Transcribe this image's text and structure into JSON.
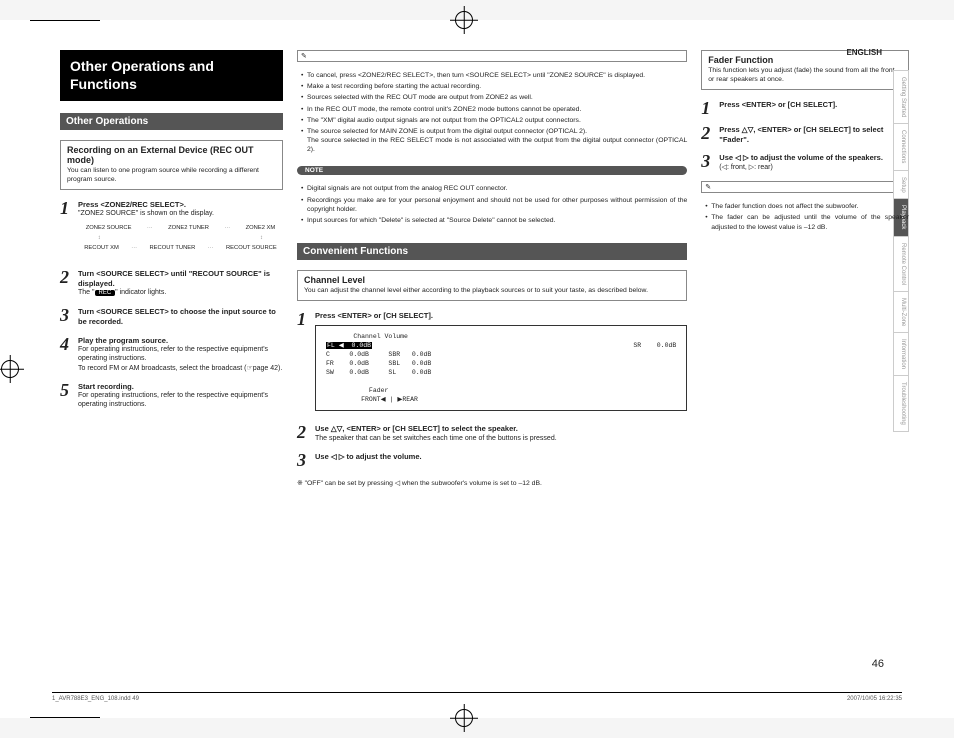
{
  "lang": "ENGLISH",
  "sideTabs": [
    "Getting Started",
    "Connections",
    "Setup",
    "Playback",
    "Remote Control",
    "Multi-Zone",
    "Information",
    "Troubleshooting"
  ],
  "sideTabActiveIndex": 3,
  "titleBlock": "Other Operations and Functions",
  "col1": {
    "sectionHeader": "Other Operations",
    "box": {
      "title": "Recording on an External Device (REC OUT mode)",
      "desc": "You can listen to one program source while recording a different program source."
    },
    "steps": [
      {
        "n": "1",
        "head": "Press <ZONE2/REC SELECT>.",
        "body": "\"ZONE2 SOURCE\" is shown on the display."
      },
      {
        "n": "2",
        "head": "Turn <SOURCE SELECT> until \"RECOUT SOURCE\" is displayed.",
        "body": "The \" REC \" indicator lights."
      },
      {
        "n": "3",
        "head": "Turn <SOURCE SELECT> to choose the input source to be recorded.",
        "body": ""
      },
      {
        "n": "4",
        "head": "Play the program source.",
        "body": "For operating instructions, refer to the respective equipment's operating instructions.\nTo record FM or AM broadcasts, select the broadcast (☞page 42)."
      },
      {
        "n": "5",
        "head": "Start recording.",
        "body": "For operating instructions, refer to the respective equipment's operating instructions."
      }
    ],
    "flow": {
      "row1": [
        "ZONE2 SOURCE",
        "···",
        "ZONE2 TUNER",
        "···",
        "ZONE2 XM"
      ],
      "row2": [
        "RECOUT XM",
        "···",
        "RECOUT TUNER",
        "···",
        "RECOUT SOURCE"
      ]
    }
  },
  "col2": {
    "topBullets": [
      "To cancel, press <ZONE2/REC SELECT>, then turn <SOURCE SELECT> until \"ZONE2 SOURCE\" is displayed.",
      "Make a test recording before starting the actual recording.",
      "Sources selected with the REC OUT mode are output from ZONE2 as well.",
      "In the REC OUT mode, the remote control unit's ZONE2 mode buttons cannot be operated.",
      "The \"XM\" digital audio output signals are not output from the OPTICAL2 output connectors.",
      "The source selected for MAIN ZONE is output from the digital output connector (OPTICAL 2).\nThe source selected in the REC SELECT mode is not associated with the output from the digital output connector (OPTICAL 2)."
    ],
    "noteLabel": "NOTE",
    "noteBullets": [
      "Digital signals are not output from the analog REC OUT connector.",
      "Recordings you make are for your personal enjoyment and should not be used for other purposes without permission of the copyright holder.",
      "Input sources for which \"Delete\" is selected at \"Source Delete\" cannot be selected."
    ],
    "sectionHeader": "Convenient Functions",
    "box": {
      "title": "Channel Level",
      "desc": "You can adjust the channel level either according to the playback sources or to suit your taste, as described below."
    },
    "steps": [
      {
        "n": "1",
        "head": "Press <ENTER> or [CH SELECT].",
        "body": ""
      },
      {
        "n": "2",
        "head": "Use △▽, <ENTER> or [CH SELECT] to select the speaker.",
        "body": "The speaker that can be set switches each time one of the buttons is pressed."
      },
      {
        "n": "3",
        "head": "Use ◁ ▷ to adjust the volume.",
        "body": ""
      }
    ],
    "footnote": "※ \"OFF\" can be set by pressing ◁ when the subwoofer's volume is set to –12 dB.",
    "channelDisplay": {
      "title": "Channel Volume",
      "rows": [
        [
          "FL",
          "0.0dB",
          "SR",
          "0.0dB"
        ],
        [
          "C",
          "0.0dB",
          "SBR",
          "0.0dB"
        ],
        [
          "FR",
          "0.0dB",
          "SBL",
          "0.0dB"
        ],
        [
          "SW",
          "0.0dB",
          "SL",
          "0.0dB"
        ]
      ],
      "fader": "Fader\nFRONT◀ | ▶REAR"
    }
  },
  "col3": {
    "box": {
      "title": "Fader Function",
      "desc": "This function lets you adjust (fade) the sound from all the front or rear speakers at once."
    },
    "steps": [
      {
        "n": "1",
        "head": "Press <ENTER> or [CH SELECT].",
        "body": ""
      },
      {
        "n": "2",
        "head": "Press △▽, <ENTER> or [CH SELECT] to select \"Fader\".",
        "body": ""
      },
      {
        "n": "3",
        "head": "Use ◁ ▷ to adjust the volume of the speakers.",
        "body": "(◁: front, ▷: rear)"
      }
    ],
    "notes": [
      "The fader function does not affect the subwoofer.",
      "The fader can be adjusted until the volume of the speaker adjusted to the lowest value is –12 dB."
    ]
  },
  "pageNum": "46",
  "footer": {
    "left": "1_AVR788E3_ENG_108.indd   49",
    "right": "2007/10/05   16:22:35"
  }
}
